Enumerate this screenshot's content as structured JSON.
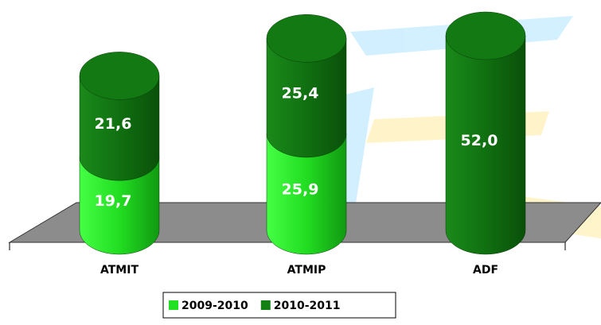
{
  "chart_data": {
    "type": "stacked-cylinder",
    "categories": [
      "ATMIT",
      "ATMIP",
      "ADF"
    ],
    "series": [
      {
        "name": "2009-2010",
        "color": "#22e022",
        "values": [
          19.7,
          25.9,
          null
        ],
        "value_labels": [
          "19,7",
          "25,9",
          null
        ]
      },
      {
        "name": "2010-2011",
        "color": "#128012",
        "values": [
          21.6,
          25.4,
          52.0
        ],
        "value_labels": [
          "21,6",
          "25,4",
          "52,0"
        ]
      }
    ],
    "legend": "bottom"
  }
}
